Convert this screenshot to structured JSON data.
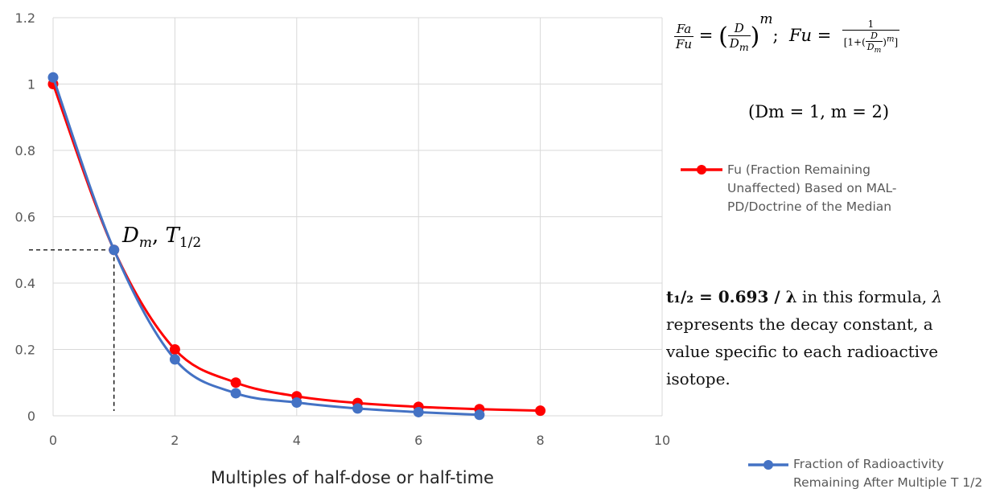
{
  "chart_data": {
    "type": "line",
    "xlabel": "Multiples of half-dose or half-time",
    "ylabel": "",
    "xlim": [
      0,
      10
    ],
    "ylim": [
      0,
      1.2
    ],
    "xticks": [
      "0",
      "2",
      "4",
      "6",
      "8",
      "10"
    ],
    "yticks": [
      "0",
      "0.2",
      "0.4",
      "0.6",
      "0.8",
      "1",
      "1.2"
    ],
    "grid": true,
    "legend_position": "right",
    "series": [
      {
        "name": "Fu (Fraction Remaining Unaffected) Based on MAL-PD/Doctrine of the Median",
        "color": "#ff0000",
        "x": [
          0,
          1,
          2,
          3,
          4,
          5,
          6,
          7,
          8
        ],
        "y": [
          1.0,
          0.5,
          0.2,
          0.1,
          0.0588,
          0.0385,
          0.027,
          0.02,
          0.0154
        ]
      },
      {
        "name": "Fraction of Radioactivity Remaining After Multiple T 1/2",
        "color": "#4472c4",
        "x": [
          0,
          1,
          2,
          3,
          4,
          5,
          6,
          7
        ],
        "y": [
          1.02,
          0.5,
          0.17,
          0.068,
          0.04,
          0.022,
          0.011,
          0.003
        ]
      }
    ],
    "annotations": [
      {
        "label_main": "D",
        "label_sub": "m",
        "label_sep": ", ",
        "label_main2": "T",
        "label_sub2": "1/2",
        "x": 1,
        "y": 0.5
      }
    ]
  },
  "equation": {
    "fa": "Fa",
    "fu": "Fu",
    "d": "D",
    "dm_main": "D",
    "dm_sub": "m",
    "exp": "m",
    "equals": "=",
    "sep": ";",
    "fu2": "Fu",
    "one": "1",
    "den_open": "[1+(",
    "den_close": ")",
    "den_exp": "m",
    "den_end": "]"
  },
  "params": "(Dm = 1,  m = 2)",
  "note": {
    "formula_bold": "t₁/₂ = 0.693 / λ",
    "text_a": " in this formula, ",
    "lambda": "λ",
    "text_b": " represents the decay constant, a value specific to each radioactive isotope."
  }
}
